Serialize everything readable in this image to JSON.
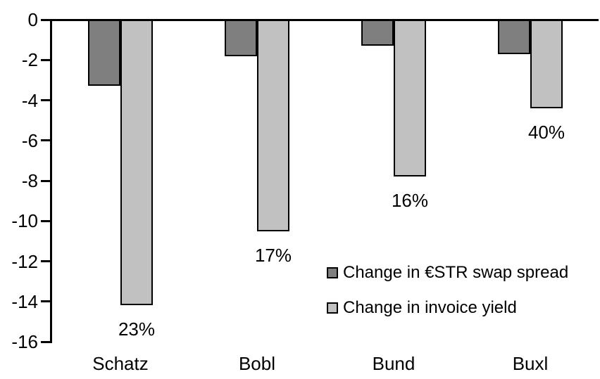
{
  "chart_data": {
    "type": "bar",
    "title": "",
    "xlabel": "",
    "ylabel": "",
    "categories": [
      "Schatz",
      "Bobl",
      "Bund",
      "Buxl"
    ],
    "series": [
      {
        "name": "Change in €STR swap spread",
        "color": "#7f7f7f",
        "values": [
          -3.3,
          -1.8,
          -1.3,
          -1.7
        ]
      },
      {
        "name": "Change in invoice yield",
        "color": "#c1c1c1",
        "values": [
          -14.2,
          -10.5,
          -7.8,
          -4.4
        ]
      }
    ],
    "bar_labels": {
      "series": "Change in invoice yield",
      "values": [
        "23%",
        "17%",
        "16%",
        "40%"
      ]
    },
    "ylim": [
      -16,
      0
    ],
    "ytick_step": 2,
    "yticks": [
      "0",
      "-2",
      "-4",
      "-6",
      "-8",
      "-10",
      "-12",
      "-14",
      "-16"
    ],
    "grid": false,
    "legend_position": "inside-right",
    "axis_color": "#000000",
    "background_color": "#ffffff",
    "bar_border_color": "#000000"
  }
}
